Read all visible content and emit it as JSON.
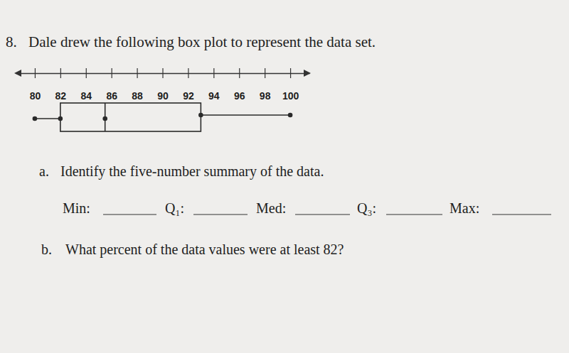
{
  "question": {
    "number": "8.",
    "text": "Dale drew the following box plot to represent the data set."
  },
  "chart_data": {
    "type": "box",
    "min": 80,
    "q1": 82,
    "median": 85.5,
    "q3": 93,
    "max": 100,
    "xlim": [
      78.5,
      101.5
    ],
    "xticks": [
      80,
      82,
      84,
      86,
      88,
      90,
      92,
      94,
      96,
      98,
      100
    ]
  },
  "part_a": {
    "label": "a.",
    "text": "Identify the five-number summary of the data.",
    "blanks": [
      "Min:",
      "Q₁:",
      "Med:",
      "Q₃:",
      "Max:"
    ]
  },
  "part_b": {
    "label": "b.",
    "text": "What percent of the data values were at least 82?"
  }
}
